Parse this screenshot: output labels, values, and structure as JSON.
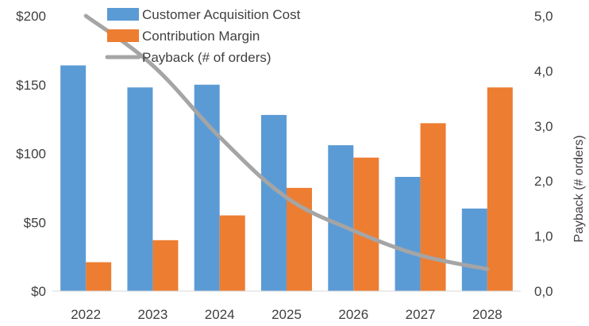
{
  "chart_data": {
    "type": "bar",
    "categories": [
      "2022",
      "2023",
      "2024",
      "2025",
      "2026",
      "2027",
      "2028"
    ],
    "series": [
      {
        "name": "Customer Acquisition Cost",
        "kind": "bar",
        "axis": "left",
        "color": "#5B9BD5",
        "values": [
          164,
          148,
          150,
          128,
          106,
          83,
          60
        ]
      },
      {
        "name": "Contribution Margin",
        "kind": "bar",
        "axis": "left",
        "color": "#ED7D31",
        "values": [
          21,
          37,
          55,
          75,
          97,
          122,
          148
        ]
      },
      {
        "name": "Payback (# of orders)",
        "kind": "line",
        "axis": "right",
        "color": "#A5A5A5",
        "values": [
          5.0,
          4.1,
          2.8,
          1.7,
          1.1,
          0.65,
          0.4
        ]
      }
    ],
    "y_left": {
      "min": 0,
      "max": 200,
      "ticks": [
        "$0",
        "$50",
        "$100",
        "$150",
        "$200"
      ],
      "label": ""
    },
    "y_right": {
      "min": 0,
      "max": 5,
      "ticks": [
        "0,0",
        "1,0",
        "2,0",
        "3,0",
        "4,0",
        "5,0"
      ],
      "label": "Payback (# orders)"
    },
    "xlabel": "",
    "title": "",
    "grid": false,
    "legend_position": "top-center"
  }
}
